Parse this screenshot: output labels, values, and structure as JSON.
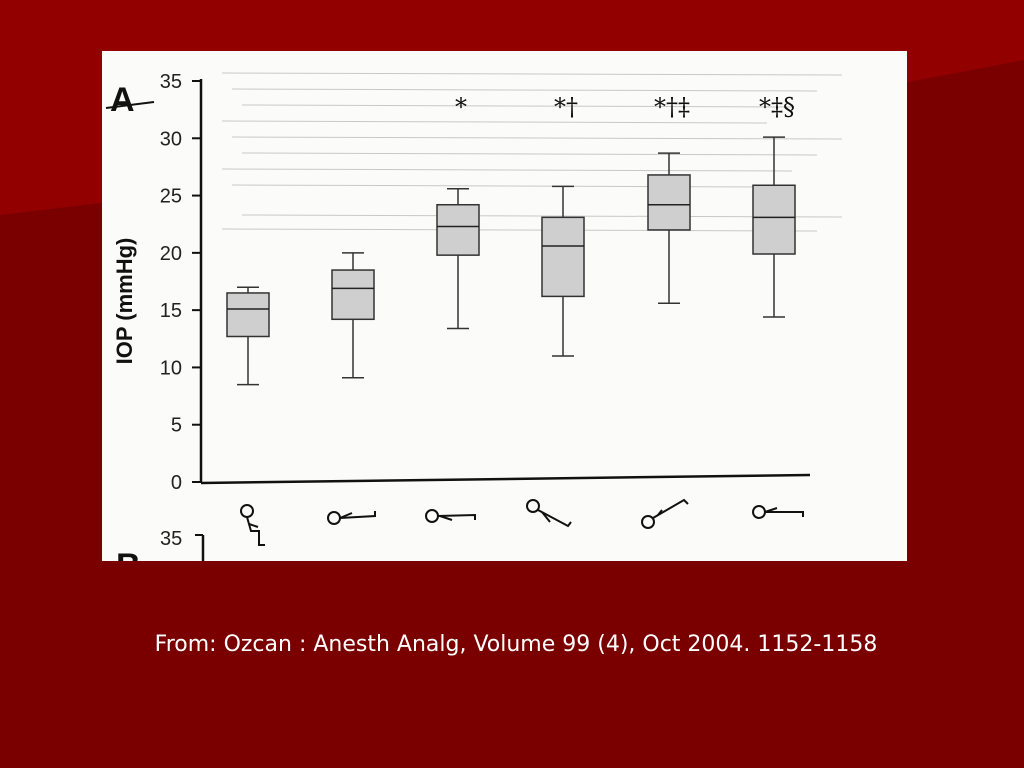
{
  "caption": "From: Ozcan : Anesth Analg, Volume 99 (4), Oct 2004. 1152-1158",
  "colors": {
    "background": "#7a0000",
    "box_fill": "#cfcfcf",
    "figure_bg": "#fbfbf9"
  },
  "chart_data": {
    "type": "box",
    "panel_label": "A",
    "ylabel": "IOP (mmHg)",
    "ylim": [
      0,
      35
    ],
    "yticks": [
      0,
      5,
      10,
      15,
      20,
      25,
      30,
      35
    ],
    "grid": false,
    "categories_icons": [
      "sitting-icon",
      "supine-icon",
      "prone-icon",
      "head-down-icon",
      "head-up-icon",
      "supine-end-icon"
    ],
    "boxes": [
      {
        "min": 8.5,
        "q1": 12.7,
        "median": 15.1,
        "q3": 16.5,
        "max": 17.0,
        "sig": ""
      },
      {
        "min": 9.1,
        "q1": 14.2,
        "median": 16.9,
        "q3": 18.5,
        "max": 20.0,
        "sig": ""
      },
      {
        "min": 13.4,
        "q1": 19.8,
        "median": 22.3,
        "q3": 24.2,
        "max": 25.6,
        "sig": "*"
      },
      {
        "min": 11.0,
        "q1": 16.2,
        "median": 20.6,
        "q3": 23.1,
        "max": 25.8,
        "sig": "*†"
      },
      {
        "min": 15.6,
        "q1": 22.0,
        "median": 24.2,
        "q3": 26.8,
        "max": 28.7,
        "sig": "*†‡"
      },
      {
        "min": 14.4,
        "q1": 19.9,
        "median": 23.1,
        "q3": 25.9,
        "max": 30.1,
        "sig": "*‡§"
      }
    ],
    "panel_b_label": "B",
    "panel_b_top_tick": "35"
  }
}
